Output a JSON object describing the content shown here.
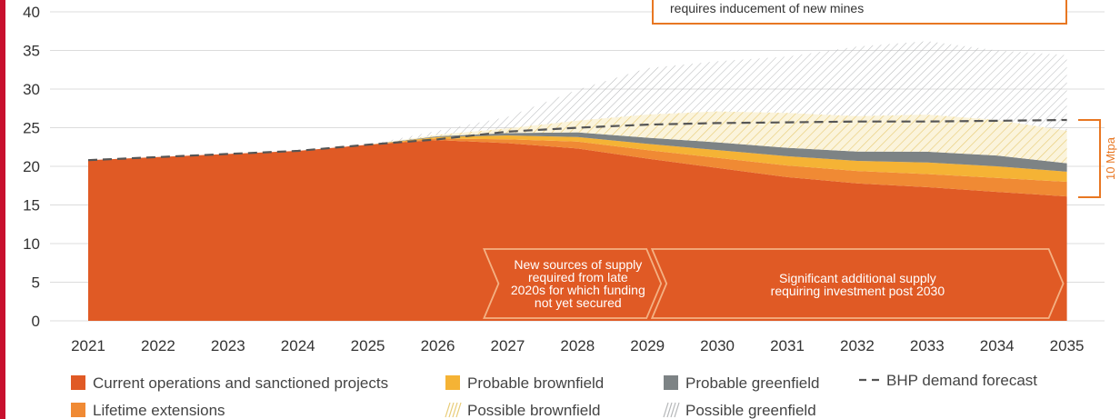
{
  "chart_data": {
    "type": "area",
    "categories": [
      "2021",
      "2022",
      "2023",
      "2024",
      "2025",
      "2026",
      "2027",
      "2028",
      "2029",
      "2030",
      "2031",
      "2032",
      "2033",
      "2034",
      "2035"
    ],
    "ylim": [
      0,
      40
    ],
    "yticks": [
      "0",
      "5",
      "10",
      "15",
      "20",
      "25",
      "30",
      "35",
      "40"
    ],
    "grid": true,
    "legend_position": "bottom",
    "series": [
      {
        "name": "Current operations and sanctioned projects",
        "color": "#e05a25",
        "values": [
          20.8,
          21.2,
          21.6,
          22.0,
          22.8,
          23.4,
          23.0,
          22.3,
          21.0,
          19.8,
          18.6,
          17.8,
          17.3,
          16.7,
          16.1
        ]
      },
      {
        "name": "Lifetime extensions",
        "color": "#f08a34",
        "values": [
          0,
          0,
          0,
          0,
          0,
          0.2,
          0.5,
          0.9,
          1.1,
          1.3,
          1.5,
          1.6,
          1.7,
          1.8,
          1.9
        ]
      },
      {
        "name": "Probable brownfield",
        "color": "#f5b335",
        "values": [
          0,
          0,
          0,
          0,
          0,
          0.2,
          0.5,
          0.6,
          0.8,
          1.0,
          1.2,
          1.3,
          1.5,
          1.5,
          1.3
        ]
      },
      {
        "name": "Probable greenfield",
        "color": "#7d8385",
        "values": [
          0,
          0,
          0,
          0,
          0,
          0.1,
          0.3,
          0.6,
          0.8,
          1.0,
          1.1,
          1.2,
          1.4,
          1.4,
          1.1
        ]
      },
      {
        "name": "Possible brownfield",
        "color": "#e8cc78",
        "pattern": "hatch",
        "values": [
          0,
          0,
          0,
          0,
          0,
          0.2,
          0.6,
          1.5,
          3.0,
          4.0,
          4.5,
          4.6,
          4.8,
          4.6,
          4.2
        ]
      },
      {
        "name": "Possible greenfield",
        "color": "#b5b7b9",
        "pattern": "hatch",
        "values": [
          0,
          0,
          0,
          0,
          0,
          0.5,
          1.5,
          4.0,
          6.0,
          6.5,
          7.3,
          9.0,
          9.5,
          9.0,
          9.8
        ]
      }
    ],
    "demand_forecast": {
      "name": "BHP demand forecast",
      "color": "#555555",
      "style": "dashed",
      "values": [
        20.8,
        21.2,
        21.6,
        22.0,
        22.8,
        23.5,
        24.5,
        25.0,
        25.4,
        25.6,
        25.7,
        25.8,
        25.8,
        25.9,
        26.0
      ]
    },
    "bracket": {
      "label": "10 Mtpa",
      "from": 16.0,
      "to": 26.0,
      "color": "#e87722"
    },
    "annotations": [
      {
        "text": [
          "New sources of supply",
          "required from late",
          "2020s for which funding",
          "not yet secured"
        ],
        "from": "2027",
        "to": "2029"
      },
      {
        "text": [
          "Significant additional supply",
          "requiring investment post 2030"
        ],
        "from": "2030",
        "to": "2035"
      }
    ],
    "callout": {
      "text": "requires inducement of new mines",
      "border_color": "#e87722"
    }
  },
  "legend": [
    {
      "label": "Current operations and sanctioned projects",
      "swatch": "solid",
      "color": "#e05a25"
    },
    {
      "label": "Probable brownfield",
      "swatch": "solid",
      "color": "#f5b335"
    },
    {
      "label": "Probable greenfield",
      "swatch": "solid",
      "color": "#7d8385"
    },
    {
      "label": "BHP demand forecast",
      "swatch": "dash",
      "color": "#555555"
    },
    {
      "label": "Lifetime extensions",
      "swatch": "solid",
      "color": "#f08a34"
    },
    {
      "label": "Possible brownfield",
      "swatch": "hatch",
      "color": "#e8cc78"
    },
    {
      "label": "Possible greenfield",
      "swatch": "hatch",
      "color": "#b5b7b9"
    }
  ]
}
